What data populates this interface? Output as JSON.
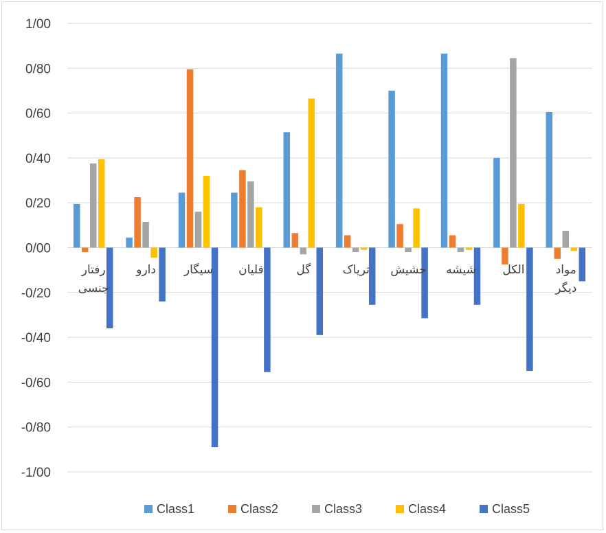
{
  "chart_data": {
    "type": "bar",
    "title": "",
    "xlabel": "",
    "ylabel": "",
    "ylim": [
      -1.0,
      1.0
    ],
    "y_ticks": [
      "1/00",
      "0/80",
      "0/60",
      "0/40",
      "0/20",
      "0/00",
      "-0/20",
      "-0/40",
      "-0/60",
      "-0/80",
      "-1/00"
    ],
    "grid": true,
    "legend_position": "bottom",
    "categories": [
      [
        "رفتار",
        "جنسی"
      ],
      [
        "دارو"
      ],
      [
        "سیگار"
      ],
      [
        "قلیان"
      ],
      [
        "گل"
      ],
      [
        "تریاک"
      ],
      [
        "حشیش"
      ],
      [
        "شیشه"
      ],
      [
        "الکل"
      ],
      [
        "مواد",
        "دیگر"
      ]
    ],
    "series": [
      {
        "name": "Class1",
        "color": "#5b9bd5",
        "values": [
          0.195,
          0.045,
          0.245,
          0.245,
          0.515,
          0.865,
          0.7,
          0.865,
          0.4,
          0.605
        ]
      },
      {
        "name": "Class2",
        "color": "#ed7d31",
        "values": [
          -0.02,
          0.225,
          0.795,
          0.345,
          0.065,
          0.055,
          0.105,
          0.055,
          -0.075,
          -0.05
        ]
      },
      {
        "name": "Class3",
        "color": "#a5a5a5",
        "values": [
          0.375,
          0.115,
          0.16,
          0.295,
          -0.03,
          -0.02,
          -0.02,
          -0.02,
          0.845,
          0.075
        ]
      },
      {
        "name": "Class4",
        "color": "#ffc000",
        "values": [
          0.395,
          -0.045,
          0.32,
          0.18,
          0.665,
          -0.01,
          0.175,
          -0.01,
          0.195,
          -0.015
        ]
      },
      {
        "name": "Class5",
        "color": "#4472c4",
        "values": [
          -0.36,
          -0.24,
          -0.89,
          -0.555,
          -0.39,
          -0.255,
          -0.315,
          -0.255,
          -0.55,
          -0.15
        ]
      }
    ]
  }
}
